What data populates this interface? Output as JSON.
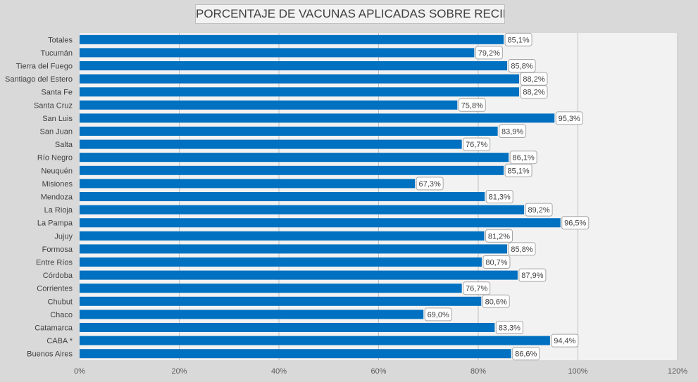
{
  "chart_data": {
    "type": "bar",
    "orientation": "horizontal",
    "title": "PORCENTAJE DE VACUNAS APLICADAS SOBRE RECIBIDAS",
    "categories": [
      "Totales",
      "Tucumán",
      "Tierra del Fuego",
      "Santiago del Estero",
      "Santa Fe",
      "Santa Cruz",
      "San Luis",
      "San Juan",
      "Salta",
      "Río Negro",
      "Neuquén",
      "Misiones",
      "Mendoza",
      "La Rioja",
      "La Pampa",
      "Jujuy",
      "Formosa",
      "Entre Ríos",
      "Córdoba",
      "Corrientes",
      "Chubut",
      "Chaco",
      "Catamarca",
      "CABA *",
      "Buenos Aires"
    ],
    "values": [
      85.1,
      79.2,
      85.8,
      88.2,
      88.2,
      75.8,
      95.3,
      83.9,
      76.7,
      86.1,
      85.1,
      67.3,
      81.3,
      89.2,
      96.5,
      81.2,
      85.8,
      80.7,
      87.9,
      76.7,
      80.6,
      69.0,
      83.3,
      94.4,
      86.6
    ],
    "data_labels": [
      "85,1%",
      "79,2%",
      "85,8%",
      "88,2%",
      "88,2%",
      "75,8%",
      "95,3%",
      "83,9%",
      "76,7%",
      "86,1%",
      "85,1%",
      "67,3%",
      "81,3%",
      "89,2%",
      "96,5%",
      "81,2%",
      "85,8%",
      "80,7%",
      "87,9%",
      "76,7%",
      "80,6%",
      "69,0%",
      "83,3%",
      "94,4%",
      "86,6%"
    ],
    "xlim": [
      0,
      120
    ],
    "xticks": [
      0,
      20,
      40,
      60,
      80,
      100,
      120
    ],
    "xtick_labels": [
      "0%",
      "20%",
      "40%",
      "60%",
      "80%",
      "100%",
      "120%"
    ],
    "xlabel": "",
    "ylabel": "",
    "grid": true,
    "legend": "none",
    "colors": {
      "bar": "#0070c0",
      "plot_background": "#f2f2f2",
      "page_background": "#d9d9d9",
      "gridline": "#bfbfbf",
      "label_box_fill": "#ffffff",
      "label_box_border": "#a6a6a6"
    }
  }
}
